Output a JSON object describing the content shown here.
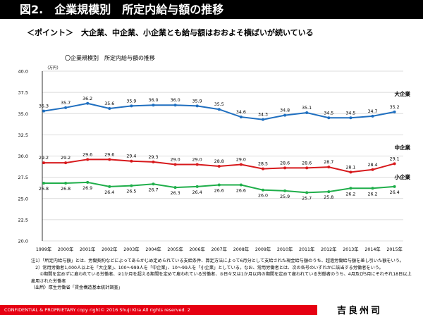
{
  "header": {
    "title": "図2.　企業規模別　所定内給与額の推移"
  },
  "point": "＜ポイント＞　大企業、中企業、小企業とも給与額はおおよそ横ばいが続いている",
  "chart_data": {
    "type": "line",
    "title": "〇企業規模別　所定内給与額の推移",
    "ylabel": "（万円）",
    "ylim": [
      20.0,
      40.0
    ],
    "yticks": [
      "20.0",
      "22.5",
      "25.0",
      "27.5",
      "30.0",
      "32.5",
      "35.0",
      "37.5",
      "40.0"
    ],
    "grid": true,
    "categories": [
      "1999年",
      "2000年",
      "2001年",
      "2002年",
      "2003年",
      "2004年",
      "2005年",
      "2006年",
      "2007年",
      "2008年",
      "2009年",
      "2010年",
      "2011年",
      "2012年",
      "2013年",
      "2014年",
      "2015年"
    ],
    "series": [
      {
        "name": "大企業",
        "color": "#1f6fc0",
        "values": [
          35.3,
          35.7,
          36.2,
          35.6,
          35.9,
          36.0,
          36.0,
          35.9,
          35.5,
          34.6,
          34.3,
          34.8,
          35.1,
          34.5,
          34.5,
          34.7,
          35.2
        ]
      },
      {
        "name": "中企業",
        "color": "#d7191c",
        "values": [
          29.2,
          29.2,
          29.6,
          29.6,
          29.4,
          29.3,
          29.0,
          29.0,
          28.8,
          29.0,
          28.5,
          28.6,
          28.6,
          28.7,
          28.1,
          28.4,
          29.1
        ]
      },
      {
        "name": "小企業",
        "color": "#1fae4a",
        "values": [
          26.8,
          26.8,
          26.9,
          26.4,
          26.5,
          26.7,
          26.3,
          26.4,
          26.6,
          26.6,
          26.0,
          25.9,
          25.7,
          25.8,
          26.2,
          26.2,
          26.4
        ]
      }
    ]
  },
  "notes": [
    "注1）「所定内給与額」とは、労働契約などによってあらかじめ定められている支給条件、算定方法によって6月分として支給された現金給与額のうち、超過労働給与額を差し引いた額をいう。",
    "　2）常用労働者1,000人以上を「大企業」、100～999人を「中企業」、10～99人を「小企業」としている。なお、常用労働者とは、次の各号のいずれかに該当する労働者をいう。",
    "　　①期間を定めずに雇われている労働者、②1か月を超える期間を定めて雇われている労働者、③日々又は1か月以内の期間を定めて雇われている労働者のうち、4月及び5月にそれぞれ18日以上雇用された労働者",
    "（出所）厚生労働省「賃金構造基本統計調査」"
  ],
  "footer": {
    "text": "CONFIDENTIAL & PROPRIETARY   copy right© 2016 Shuji Kira All rights reserved.     2",
    "logo": "吉良州司"
  }
}
